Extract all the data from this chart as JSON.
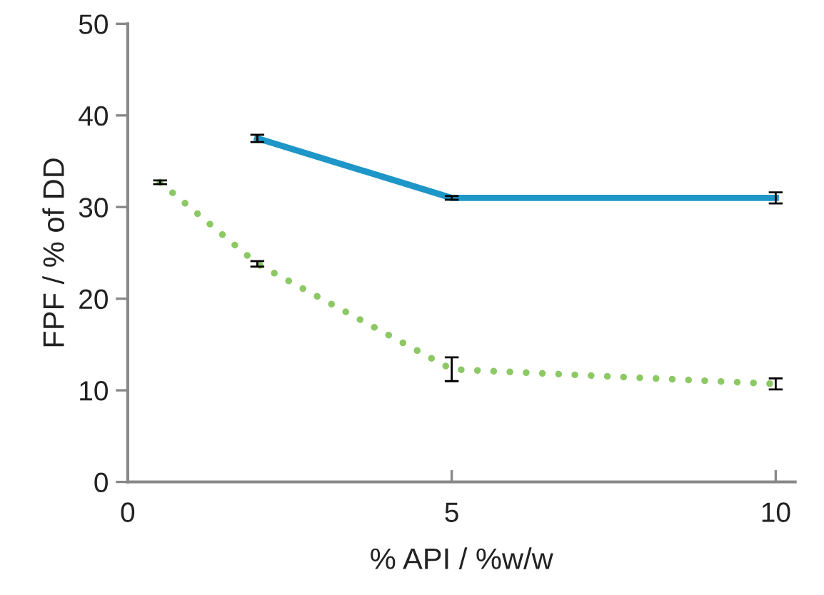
{
  "chart_data": {
    "type": "line",
    "xlabel": "% API / %w/w",
    "ylabel": "FPF / % of DD",
    "xlim": [
      0,
      10.3
    ],
    "xticks": [
      0,
      5,
      10
    ],
    "ylim": [
      0,
      50
    ],
    "yticks": [
      0,
      10,
      20,
      30,
      40,
      50
    ],
    "grid": false,
    "legend": false,
    "series": [
      {
        "color": "#1e96c8",
        "line_style": "solid",
        "x": [
          2,
          5,
          10
        ],
        "values": [
          37.5,
          31.0,
          31.0
        ],
        "errors": [
          0.4,
          0.2,
          0.6
        ]
      },
      {
        "color": "#8cc864",
        "line_style": "dotted",
        "x": [
          0.5,
          2,
          5,
          10
        ],
        "values": [
          32.7,
          23.8,
          12.3,
          10.7
        ],
        "errors": [
          0.2,
          0.3,
          1.3,
          0.6
        ]
      }
    ]
  }
}
